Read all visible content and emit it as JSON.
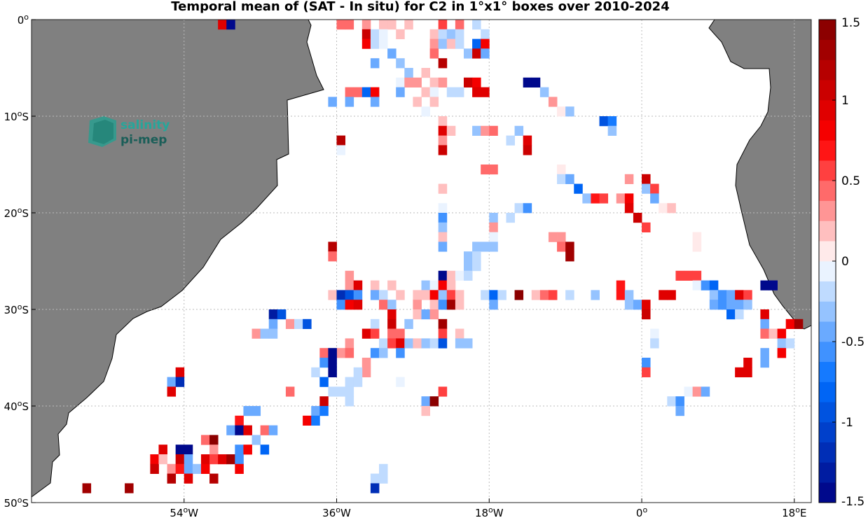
{
  "title": "Temporal mean of (SAT - In situ) for C2 in 1°x1° boxes over 2010-2024",
  "logo": {
    "line1": "salinity",
    "line2": "pi-mep"
  },
  "colors": {
    "land": "#808080",
    "coast": "#000000",
    "grid": "#bbbbbb"
  },
  "lat_ticks": [
    {
      "value": 0,
      "label": "0°"
    },
    {
      "value": -10,
      "label": "10°S"
    },
    {
      "value": -20,
      "label": "20°S"
    },
    {
      "value": -30,
      "label": "30°S"
    },
    {
      "value": -40,
      "label": "40°S"
    },
    {
      "value": -50,
      "label": "50°S"
    }
  ],
  "lon_ticks": [
    {
      "value": -54,
      "label": "54°W"
    },
    {
      "value": -36,
      "label": "36°W"
    },
    {
      "value": -18,
      "label": "18°W"
    },
    {
      "value": 0,
      "label": "0°"
    },
    {
      "value": 18,
      "label": "18°E"
    }
  ],
  "colorbar": {
    "min": -1.5,
    "max": 1.5,
    "ticks": [
      {
        "value": 1.5,
        "label": "1.5"
      },
      {
        "value": 1,
        "label": "1"
      },
      {
        "value": 0.5,
        "label": "0.5"
      },
      {
        "value": 0,
        "label": "0"
      },
      {
        "value": -0.5,
        "label": "-0.5"
      },
      {
        "value": -1,
        "label": "-1"
      },
      {
        "value": -1.5,
        "label": "-1.5"
      }
    ]
  },
  "map_extent": {
    "lon": [
      -72,
      20
    ],
    "lat": [
      -50,
      0
    ]
  },
  "boxes": [
    [
      -36,
      -1,
      0.4
    ],
    [
      -35,
      -1,
      0.4
    ],
    [
      -33,
      -1,
      0.3
    ],
    [
      -31,
      -1,
      0.2
    ],
    [
      -30,
      -1,
      0.2
    ],
    [
      -28,
      -1,
      0.2
    ],
    [
      -24,
      -1,
      0.5
    ],
    [
      -22,
      -1,
      0.4
    ],
    [
      -20,
      -1,
      -0.2
    ],
    [
      -50,
      -1,
      0.9
    ],
    [
      -49,
      -1,
      -1.4
    ],
    [
      -33,
      -2,
      1.0
    ],
    [
      -32,
      -2,
      -0.2
    ],
    [
      -31,
      -2,
      -0.1
    ],
    [
      -29,
      -2,
      0.2
    ],
    [
      -25,
      -2,
      0.2
    ],
    [
      -24,
      -2,
      -0.2
    ],
    [
      -23,
      -2,
      -0.3
    ],
    [
      -22,
      -2,
      -0.2
    ],
    [
      -19,
      -2,
      -0.2
    ],
    [
      -33,
      -3,
      0.8
    ],
    [
      -32,
      -3,
      -0.2
    ],
    [
      -31,
      -3,
      -0.1
    ],
    [
      -25,
      -3,
      0.3
    ],
    [
      -24,
      -3,
      -0.3
    ],
    [
      -23,
      -3,
      0.2
    ],
    [
      -22,
      -3,
      -0.2
    ],
    [
      -20,
      -3,
      -0.8
    ],
    [
      -19,
      -3,
      0.8
    ],
    [
      -30,
      -4,
      -0.4
    ],
    [
      -25,
      -4,
      0.4
    ],
    [
      -21,
      -4,
      -0.3
    ],
    [
      -20,
      -4,
      1.0
    ],
    [
      -19,
      -4,
      -0.4
    ],
    [
      -32,
      -5,
      -0.5
    ],
    [
      -29,
      -5,
      -0.3
    ],
    [
      -24,
      -5,
      1.2
    ],
    [
      -28,
      -6,
      -0.3
    ],
    [
      -26,
      -6,
      0.2
    ],
    [
      -29,
      -7,
      -0.1
    ],
    [
      -28,
      -7,
      0.3
    ],
    [
      -27,
      -7,
      0.3
    ],
    [
      -25,
      -7,
      0.2
    ],
    [
      -24,
      -7,
      0.3
    ],
    [
      -21,
      -7,
      1.1
    ],
    [
      -20,
      -7,
      0.8
    ],
    [
      -14,
      -7,
      -1.5
    ],
    [
      -13,
      -7,
      -1.5
    ],
    [
      -35,
      -8,
      0.4
    ],
    [
      -34,
      -8,
      0.4
    ],
    [
      -33,
      -8,
      -0.8
    ],
    [
      -32,
      -8,
      0.8
    ],
    [
      -29,
      -8,
      -0.4
    ],
    [
      -26,
      -8,
      0.2
    ],
    [
      -25,
      -8,
      -0.1
    ],
    [
      -23,
      -8,
      -0.2
    ],
    [
      -22,
      -8,
      -0.2
    ],
    [
      -20,
      -8,
      0.9
    ],
    [
      -19,
      -8,
      0.9
    ],
    [
      -12,
      -8,
      -0.3
    ],
    [
      -37,
      -9,
      -0.5
    ],
    [
      -35,
      -9,
      -0.4
    ],
    [
      -32,
      -9,
      -0.5
    ],
    [
      -27,
      -9,
      0.2
    ],
    [
      -25,
      -9,
      0.2
    ],
    [
      -11,
      -9,
      0.3
    ],
    [
      -26,
      -10,
      -0.1
    ],
    [
      -10,
      -10,
      0.1
    ],
    [
      -9,
      -10,
      -0.3
    ],
    [
      -24,
      -11,
      0.2
    ],
    [
      -5,
      -11,
      -1.0
    ],
    [
      -4,
      -11,
      -0.7
    ],
    [
      -24,
      -12,
      0.9
    ],
    [
      -23,
      -12,
      0.2
    ],
    [
      -20,
      -12,
      -0.3
    ],
    [
      -19,
      -12,
      0.3
    ],
    [
      -18,
      -12,
      0.4
    ],
    [
      -15,
      -12,
      -0.3
    ],
    [
      -4,
      -12,
      -0.3
    ],
    [
      -36,
      -13,
      1.2
    ],
    [
      -24,
      -13,
      0.3
    ],
    [
      -16,
      -13,
      -0.2
    ],
    [
      -14,
      -13,
      0.9
    ],
    [
      -36,
      -14,
      -0.1
    ],
    [
      -24,
      -14,
      1.0
    ],
    [
      -14,
      -14,
      1.0
    ],
    [
      -19,
      -16,
      0.4
    ],
    [
      -18,
      -16,
      0.4
    ],
    [
      -10,
      -16,
      0.1
    ],
    [
      -10,
      -17,
      -0.2
    ],
    [
      -9,
      -17,
      -0.4
    ],
    [
      -2,
      -17,
      0.3
    ],
    [
      0,
      -17,
      1.0
    ],
    [
      -24,
      -18,
      0.2
    ],
    [
      -8,
      -18,
      -0.8
    ],
    [
      0,
      -18,
      -0.3
    ],
    [
      1,
      -18,
      0.6
    ],
    [
      -7,
      -19,
      -0.3
    ],
    [
      -6,
      -19,
      0.7
    ],
    [
      -5,
      -19,
      0.6
    ],
    [
      -3,
      -19,
      0.3
    ],
    [
      -2,
      -19,
      0.8
    ],
    [
      1,
      -19,
      -0.4
    ],
    [
      -24,
      -20,
      -0.1
    ],
    [
      -15,
      -20,
      -0.2
    ],
    [
      -14,
      -20,
      -0.6
    ],
    [
      -2,
      -20,
      0.9
    ],
    [
      2,
      -20,
      0.1
    ],
    [
      3,
      -20,
      0.2
    ],
    [
      -24,
      -21,
      -0.6
    ],
    [
      -18,
      -21,
      -0.3
    ],
    [
      -16,
      -21,
      -0.2
    ],
    [
      -1,
      -21,
      1.0
    ],
    [
      -24,
      -22,
      -0.3
    ],
    [
      -18,
      -22,
      0.3
    ],
    [
      0,
      -22,
      0.5
    ],
    [
      -24,
      -23,
      0.2
    ],
    [
      -18,
      -23,
      -0.1
    ],
    [
      -11,
      -23,
      0.3
    ],
    [
      -10,
      -23,
      0.3
    ],
    [
      6,
      -23,
      0.1
    ],
    [
      -37,
      -24,
      1.2
    ],
    [
      -24,
      -24,
      -0.4
    ],
    [
      -20,
      -24,
      -0.3
    ],
    [
      -19,
      -24,
      -0.3
    ],
    [
      -18,
      -24,
      -0.3
    ],
    [
      -10,
      -24,
      0.4
    ],
    [
      -9,
      -24,
      1.3
    ],
    [
      6,
      -24,
      0.1
    ],
    [
      -37,
      -25,
      0.4
    ],
    [
      -21,
      -25,
      -0.3
    ],
    [
      -20,
      -25,
      -0.2
    ],
    [
      -9,
      -25,
      1.3
    ],
    [
      -21,
      -26,
      -0.3
    ],
    [
      -20,
      -26,
      -0.2
    ],
    [
      -35,
      -27,
      0.3
    ],
    [
      -24,
      -27,
      -1.5
    ],
    [
      -23,
      -27,
      0.2
    ],
    [
      -22,
      -27,
      -0.1
    ],
    [
      -21,
      -27,
      -0.2
    ],
    [
      4,
      -27,
      0.5
    ],
    [
      5,
      -27,
      0.5
    ],
    [
      6,
      -27,
      0.5
    ],
    [
      -35,
      -28,
      0.3
    ],
    [
      -34,
      -28,
      0.9
    ],
    [
      -32,
      -28,
      0.2
    ],
    [
      -30,
      -28,
      0.2
    ],
    [
      -26,
      -28,
      -0.3
    ],
    [
      -25,
      -28,
      -0.1
    ],
    [
      -24,
      -28,
      0.8
    ],
    [
      -23,
      -28,
      0.2
    ],
    [
      -3,
      -28,
      0.7
    ],
    [
      6,
      -28,
      -0.1
    ],
    [
      7,
      -28,
      -0.6
    ],
    [
      8,
      -28,
      -0.8
    ],
    [
      14,
      -28,
      -1.5
    ],
    [
      15,
      -28,
      -1.5
    ],
    [
      -37,
      -29,
      0.2
    ],
    [
      -36,
      -29,
      -1.2
    ],
    [
      -35,
      -29,
      -1.0
    ],
    [
      -34,
      -29,
      -0.6
    ],
    [
      -32,
      -29,
      -0.4
    ],
    [
      -31,
      -29,
      -0.2
    ],
    [
      -29,
      -29,
      0.2
    ],
    [
      -27,
      -29,
      0.2
    ],
    [
      -26,
      -29,
      0.2
    ],
    [
      -25,
      -29,
      0.8
    ],
    [
      -24,
      -29,
      -0.3
    ],
    [
      -23,
      -29,
      0.6
    ],
    [
      -22,
      -29,
      0.2
    ],
    [
      -19,
      -29,
      -0.2
    ],
    [
      -18,
      -29,
      -0.8
    ],
    [
      -17,
      -29,
      -0.2
    ],
    [
      -15,
      -29,
      1.4
    ],
    [
      -13,
      -29,
      0.2
    ],
    [
      -12,
      -29,
      0.4
    ],
    [
      -11,
      -29,
      0.5
    ],
    [
      -9,
      -29,
      -0.2
    ],
    [
      -6,
      -29,
      -0.3
    ],
    [
      -3,
      -29,
      0.7
    ],
    [
      -2,
      -29,
      -0.3
    ],
    [
      2,
      -29,
      0.9
    ],
    [
      3,
      -29,
      0.9
    ],
    [
      8,
      -29,
      -0.3
    ],
    [
      9,
      -29,
      -0.6
    ],
    [
      10,
      -29,
      -0.5
    ],
    [
      11,
      -29,
      0.9
    ],
    [
      12,
      -29,
      0.6
    ],
    [
      -36,
      -30,
      -0.6
    ],
    [
      -35,
      -30,
      0.8
    ],
    [
      -34,
      -30,
      0.9
    ],
    [
      -31,
      -30,
      0.4
    ],
    [
      -30,
      -30,
      -0.3
    ],
    [
      -27,
      -30,
      0.3
    ],
    [
      -25,
      -30,
      0.2
    ],
    [
      -24,
      -30,
      -0.6
    ],
    [
      -23,
      -30,
      1.3
    ],
    [
      -22,
      -30,
      0.2
    ],
    [
      -18,
      -30,
      -0.4
    ],
    [
      -2,
      -30,
      -0.3
    ],
    [
      -1,
      -30,
      -0.4
    ],
    [
      0,
      -30,
      0.9
    ],
    [
      8,
      -30,
      -0.4
    ],
    [
      9,
      -30,
      -0.6
    ],
    [
      10,
      -30,
      -0.4
    ],
    [
      11,
      -30,
      -0.4
    ],
    [
      12,
      -30,
      -0.3
    ],
    [
      -44,
      -31,
      -1.3
    ],
    [
      -43,
      -31,
      -1.0
    ],
    [
      -30,
      -31,
      0.9
    ],
    [
      -27,
      -31,
      0.2
    ],
    [
      -26,
      -31,
      -0.4
    ],
    [
      -25,
      -31,
      0.3
    ],
    [
      0,
      -31,
      1.0
    ],
    [
      10,
      -31,
      -0.8
    ],
    [
      11,
      -31,
      -0.2
    ],
    [
      14,
      -31,
      0.9
    ],
    [
      -44,
      -32,
      -0.4
    ],
    [
      -42,
      -32,
      0.3
    ],
    [
      -41,
      -32,
      -0.2
    ],
    [
      -40,
      -32,
      -1.0
    ],
    [
      -32,
      -32,
      -0.2
    ],
    [
      -30,
      -32,
      1.0
    ],
    [
      -28,
      -32,
      -0.3
    ],
    [
      -24,
      -32,
      1.3
    ],
    [
      14,
      -32,
      -0.4
    ],
    [
      17,
      -32,
      0.8
    ],
    [
      18,
      -32,
      1.3
    ],
    [
      -46,
      -33,
      0.3
    ],
    [
      -45,
      -33,
      -0.3
    ],
    [
      -44,
      -33,
      -0.3
    ],
    [
      -33,
      -33,
      0.9
    ],
    [
      -32,
      -33,
      0.5
    ],
    [
      -30,
      -33,
      0.4
    ],
    [
      -29,
      -33,
      0.4
    ],
    [
      -24,
      -33,
      0.6
    ],
    [
      -22,
      -33,
      0.2
    ],
    [
      1,
      -33,
      -0.1
    ],
    [
      14,
      -33,
      0.4
    ],
    [
      15,
      -33,
      0.2
    ],
    [
      16,
      -33,
      0.8
    ],
    [
      -35,
      -34,
      0.3
    ],
    [
      -31,
      -34,
      -0.2
    ],
    [
      -30,
      -34,
      0.5
    ],
    [
      -29,
      -34,
      0.9
    ],
    [
      -28,
      -34,
      -0.3
    ],
    [
      -27,
      -34,
      0.2
    ],
    [
      -26,
      -34,
      -0.3
    ],
    [
      -25,
      -34,
      -0.2
    ],
    [
      -24,
      -34,
      -0.9
    ],
    [
      -22,
      -34,
      -0.3
    ],
    [
      -21,
      -34,
      -0.3
    ],
    [
      1,
      -34,
      -0.2
    ],
    [
      16,
      -34,
      -0.3
    ],
    [
      17,
      -34,
      -0.2
    ],
    [
      -36,
      -35,
      0.3
    ],
    [
      -35,
      -35,
      0.4
    ],
    [
      -32,
      -35,
      -0.6
    ],
    [
      -31,
      -35,
      -0.3
    ],
    [
      -29,
      -35,
      -0.6
    ],
    [
      -38,
      -35,
      0.4
    ],
    [
      -37,
      -35,
      -1.5
    ],
    [
      14,
      -35,
      -0.4
    ],
    [
      16,
      -35,
      0.8
    ],
    [
      -38,
      -36,
      -0.6
    ],
    [
      -37,
      -36,
      -1.5
    ],
    [
      -33,
      -36,
      0.3
    ],
    [
      0,
      -36,
      -0.6
    ],
    [
      12,
      -36,
      0.9
    ],
    [
      14,
      -36,
      -0.4
    ],
    [
      -55,
      -37,
      0.9
    ],
    [
      -39,
      -37,
      -0.2
    ],
    [
      -37,
      -37,
      -1.5
    ],
    [
      -33,
      -37,
      0.3
    ],
    [
      -34,
      -37,
      -0.2
    ],
    [
      0,
      -37,
      0.6
    ],
    [
      11,
      -37,
      0.9
    ],
    [
      12,
      -37,
      0.9
    ],
    [
      -56,
      -38,
      -0.5
    ],
    [
      -55,
      -38,
      -1.2
    ],
    [
      -38,
      -38,
      -0.8
    ],
    [
      -35,
      -38,
      -0.2
    ],
    [
      -34,
      -38,
      -0.2
    ],
    [
      -29,
      -38,
      -0.1
    ],
    [
      -56,
      -39,
      0.9
    ],
    [
      -42,
      -39,
      0.4
    ],
    [
      -37,
      -39,
      -0.2
    ],
    [
      -36,
      -39,
      -0.2
    ],
    [
      -35,
      -39,
      -0.2
    ],
    [
      -24,
      -39,
      0.6
    ],
    [
      5,
      -39,
      -0.1
    ],
    [
      6,
      -39,
      0.3
    ],
    [
      7,
      -39,
      -0.4
    ],
    [
      -38,
      -40,
      1.0
    ],
    [
      -35,
      -40,
      -0.2
    ],
    [
      -26,
      -40,
      -0.4
    ],
    [
      -25,
      -40,
      1.4
    ],
    [
      3,
      -40,
      -0.2
    ],
    [
      4,
      -40,
      -0.6
    ],
    [
      -39,
      -41,
      -0.4
    ],
    [
      -38,
      -41,
      -0.7
    ],
    [
      -47,
      -41,
      -0.5
    ],
    [
      -46,
      -41,
      -0.5
    ],
    [
      -26,
      -41,
      0.2
    ],
    [
      4,
      -41,
      -0.5
    ],
    [
      -48,
      -42,
      0.7
    ],
    [
      -40,
      -42,
      0.8
    ],
    [
      -39,
      -42,
      -0.7
    ],
    [
      -49,
      -43,
      -0.4
    ],
    [
      -48,
      -43,
      -1.5
    ],
    [
      -47,
      -43,
      0.9
    ],
    [
      -45,
      -43,
      0.4
    ],
    [
      -44,
      -43,
      -0.4
    ],
    [
      -52,
      -44,
      0.4
    ],
    [
      -51,
      -44,
      1.4
    ],
    [
      -46,
      -44,
      -0.3
    ],
    [
      -55,
      -45,
      -1.5
    ],
    [
      -54,
      -45,
      -1.5
    ],
    [
      -57,
      -45,
      0.9
    ],
    [
      -51,
      -45,
      0.3
    ],
    [
      -48,
      -45,
      -0.6
    ],
    [
      -47,
      -45,
      0.8
    ],
    [
      -45,
      -45,
      -0.8
    ],
    [
      -58,
      -46,
      0.8
    ],
    [
      -55,
      -46,
      1.0
    ],
    [
      -54,
      -46,
      -0.5
    ],
    [
      -52,
      -46,
      0.9
    ],
    [
      -51,
      -46,
      0.6
    ],
    [
      -50,
      -46,
      0.9
    ],
    [
      -49,
      -46,
      1.3
    ],
    [
      -48,
      -46,
      -0.6
    ],
    [
      -58,
      -47,
      1.1
    ],
    [
      -57,
      -46,
      0.2
    ],
    [
      -56,
      -47,
      0.3
    ],
    [
      -55,
      -47,
      0.7
    ],
    [
      -54,
      -47,
      -0.4
    ],
    [
      -53,
      -47,
      -0.3
    ],
    [
      -52,
      -47,
      0.8
    ],
    [
      -48,
      -47,
      0.8
    ],
    [
      -31,
      -47,
      -0.2
    ],
    [
      -56,
      -48,
      1.2
    ],
    [
      -54,
      -48,
      0.9
    ],
    [
      -51,
      -48,
      1.2
    ],
    [
      -32,
      -48,
      -0.2
    ],
    [
      -31,
      -48,
      -0.2
    ],
    [
      -66,
      -49,
      1.3
    ],
    [
      -61,
      -49,
      1.3
    ],
    [
      -32,
      -49,
      -1.2
    ]
  ]
}
